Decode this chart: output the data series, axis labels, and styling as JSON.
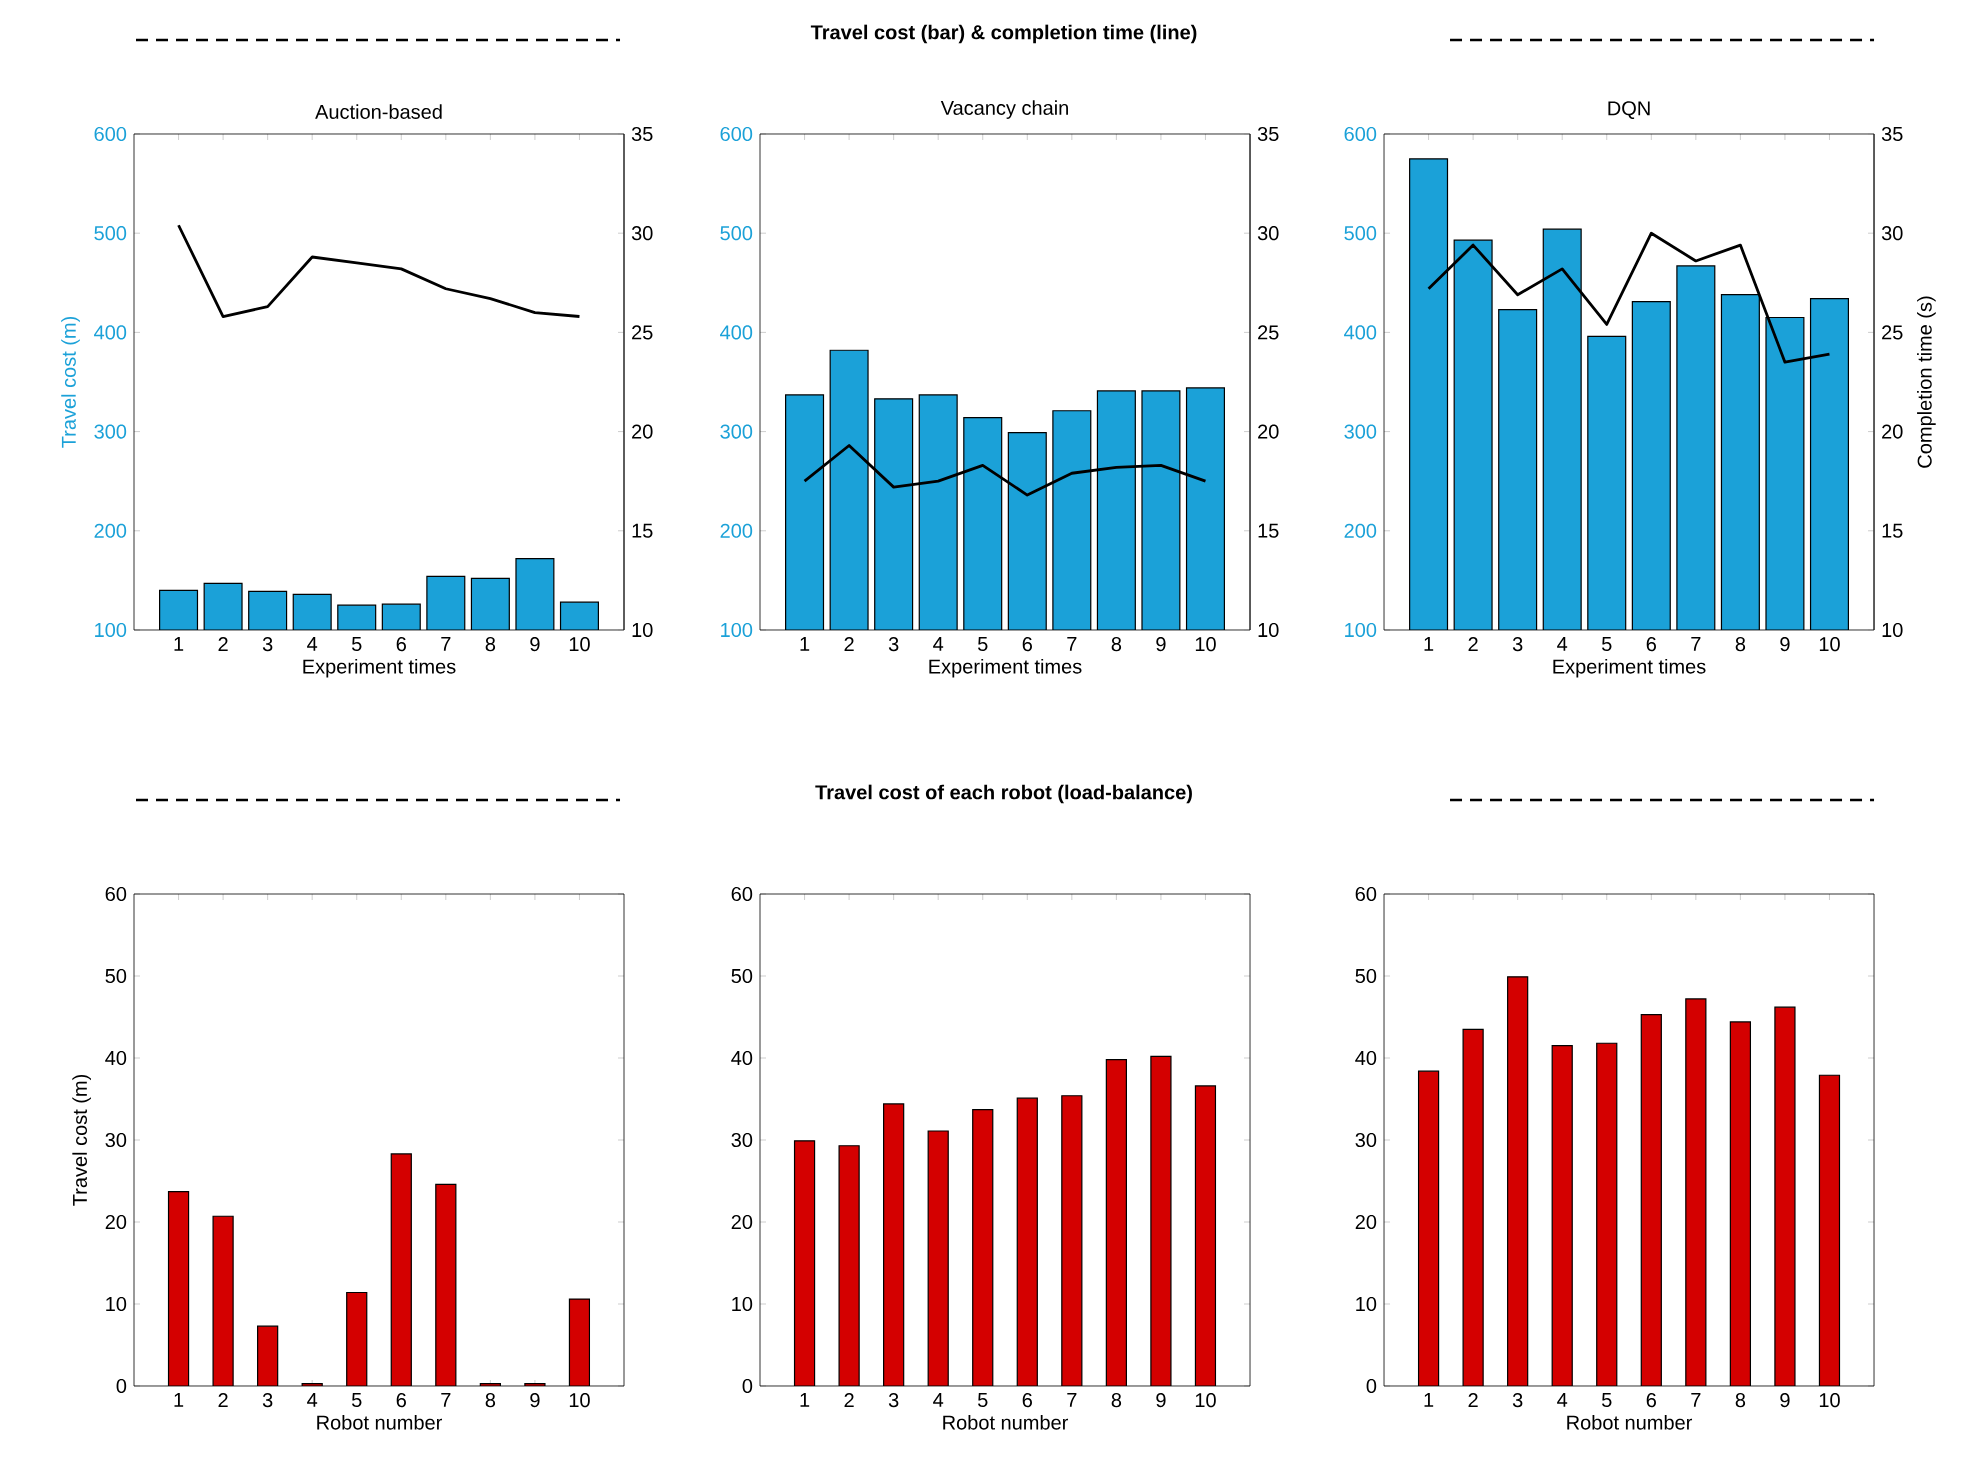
{
  "chart_data": [
    {
      "type": "bar",
      "title": "Auction-based",
      "xlabel": "Experiment times",
      "ylabel": "Travel cost (m)",
      "annotations": [
        "Travel cost (bar) & completion time (line)"
      ],
      "categories": [
        "1",
        "2",
        "3",
        "4",
        "5",
        "6",
        "7",
        "8",
        "9",
        "10"
      ],
      "ylim": [
        100,
        600
      ],
      "yticks": [
        100,
        200,
        300,
        400,
        500,
        600
      ],
      "y2lim": [
        10,
        35
      ],
      "y2ticks": [
        10,
        15,
        20,
        25,
        30,
        35
      ],
      "series": [
        {
          "color": "#1ba1d8",
          "values": [
            140,
            147,
            139,
            136,
            125,
            126,
            154,
            152,
            172,
            128
          ]
        },
        {
          "type": "line",
          "axis": "y2",
          "color": "#000000",
          "values": [
            30.4,
            25.8,
            26.3,
            28.8,
            28.5,
            28.2,
            27.2,
            26.7,
            26.0,
            25.8
          ]
        }
      ]
    },
    {
      "type": "bar",
      "title": "Vacancy chain",
      "xlabel": "Experiment times",
      "categories": [
        "1",
        "2",
        "3",
        "4",
        "5",
        "6",
        "7",
        "8",
        "9",
        "10"
      ],
      "ylim": [
        100,
        600
      ],
      "yticks": [
        100,
        200,
        300,
        400,
        500,
        600
      ],
      "y2lim": [
        10,
        35
      ],
      "y2ticks": [
        10,
        15,
        20,
        25,
        30,
        35
      ],
      "series": [
        {
          "color": "#1ba1d8",
          "values": [
            337,
            382,
            333,
            337,
            314,
            299,
            321,
            341,
            341,
            344
          ]
        },
        {
          "type": "line",
          "axis": "y2",
          "color": "#000000",
          "values": [
            17.5,
            19.3,
            17.2,
            17.5,
            18.3,
            16.8,
            17.9,
            18.2,
            18.3,
            17.5
          ]
        }
      ]
    },
    {
      "type": "bar",
      "title": "DQN",
      "xlabel": "Experiment times",
      "y2label": "Completion time (s)",
      "categories": [
        "1",
        "2",
        "3",
        "4",
        "5",
        "6",
        "7",
        "8",
        "9",
        "10"
      ],
      "ylim": [
        100,
        600
      ],
      "yticks": [
        100,
        200,
        300,
        400,
        500,
        600
      ],
      "y2lim": [
        10,
        35
      ],
      "y2ticks": [
        10,
        15,
        20,
        25,
        30,
        35
      ],
      "series": [
        {
          "color": "#1ba1d8",
          "values": [
            575,
            493,
            423,
            504,
            396,
            431,
            467,
            438,
            415,
            434
          ]
        },
        {
          "type": "line",
          "axis": "y2",
          "color": "#000000",
          "values": [
            27.2,
            29.4,
            26.9,
            28.2,
            25.4,
            30.0,
            28.6,
            29.4,
            23.5,
            23.9
          ]
        }
      ]
    },
    {
      "type": "bar",
      "xlabel": "Robot number",
      "ylabel": "Travel cost (m)",
      "annotations": [
        "Travel cost of each robot (load-balance)"
      ],
      "categories": [
        "1",
        "2",
        "3",
        "4",
        "5",
        "6",
        "7",
        "8",
        "9",
        "10"
      ],
      "ylim": [
        0,
        60
      ],
      "yticks": [
        0,
        10,
        20,
        30,
        40,
        50,
        60
      ],
      "series": [
        {
          "color": "#d40000",
          "values": [
            23.7,
            20.7,
            7.3,
            0.3,
            11.4,
            28.3,
            24.6,
            0.3,
            0.3,
            10.6
          ]
        }
      ]
    },
    {
      "type": "bar",
      "xlabel": "Robot number",
      "categories": [
        "1",
        "2",
        "3",
        "4",
        "5",
        "6",
        "7",
        "8",
        "9",
        "10"
      ],
      "ylim": [
        0,
        60
      ],
      "yticks": [
        0,
        10,
        20,
        30,
        40,
        50,
        60
      ],
      "series": [
        {
          "color": "#d40000",
          "values": [
            29.9,
            29.3,
            34.4,
            31.1,
            33.7,
            35.1,
            35.4,
            39.8,
            40.2,
            36.6
          ]
        }
      ]
    },
    {
      "type": "bar",
      "xlabel": "Robot number",
      "categories": [
        "1",
        "2",
        "3",
        "4",
        "5",
        "6",
        "7",
        "8",
        "9",
        "10"
      ],
      "ylim": [
        0,
        60
      ],
      "yticks": [
        0,
        10,
        20,
        30,
        40,
        50,
        60
      ],
      "series": [
        {
          "color": "#d40000",
          "values": [
            38.4,
            43.5,
            49.9,
            41.5,
            41.8,
            45.3,
            47.2,
            44.4,
            46.2,
            37.9
          ]
        }
      ]
    }
  ]
}
